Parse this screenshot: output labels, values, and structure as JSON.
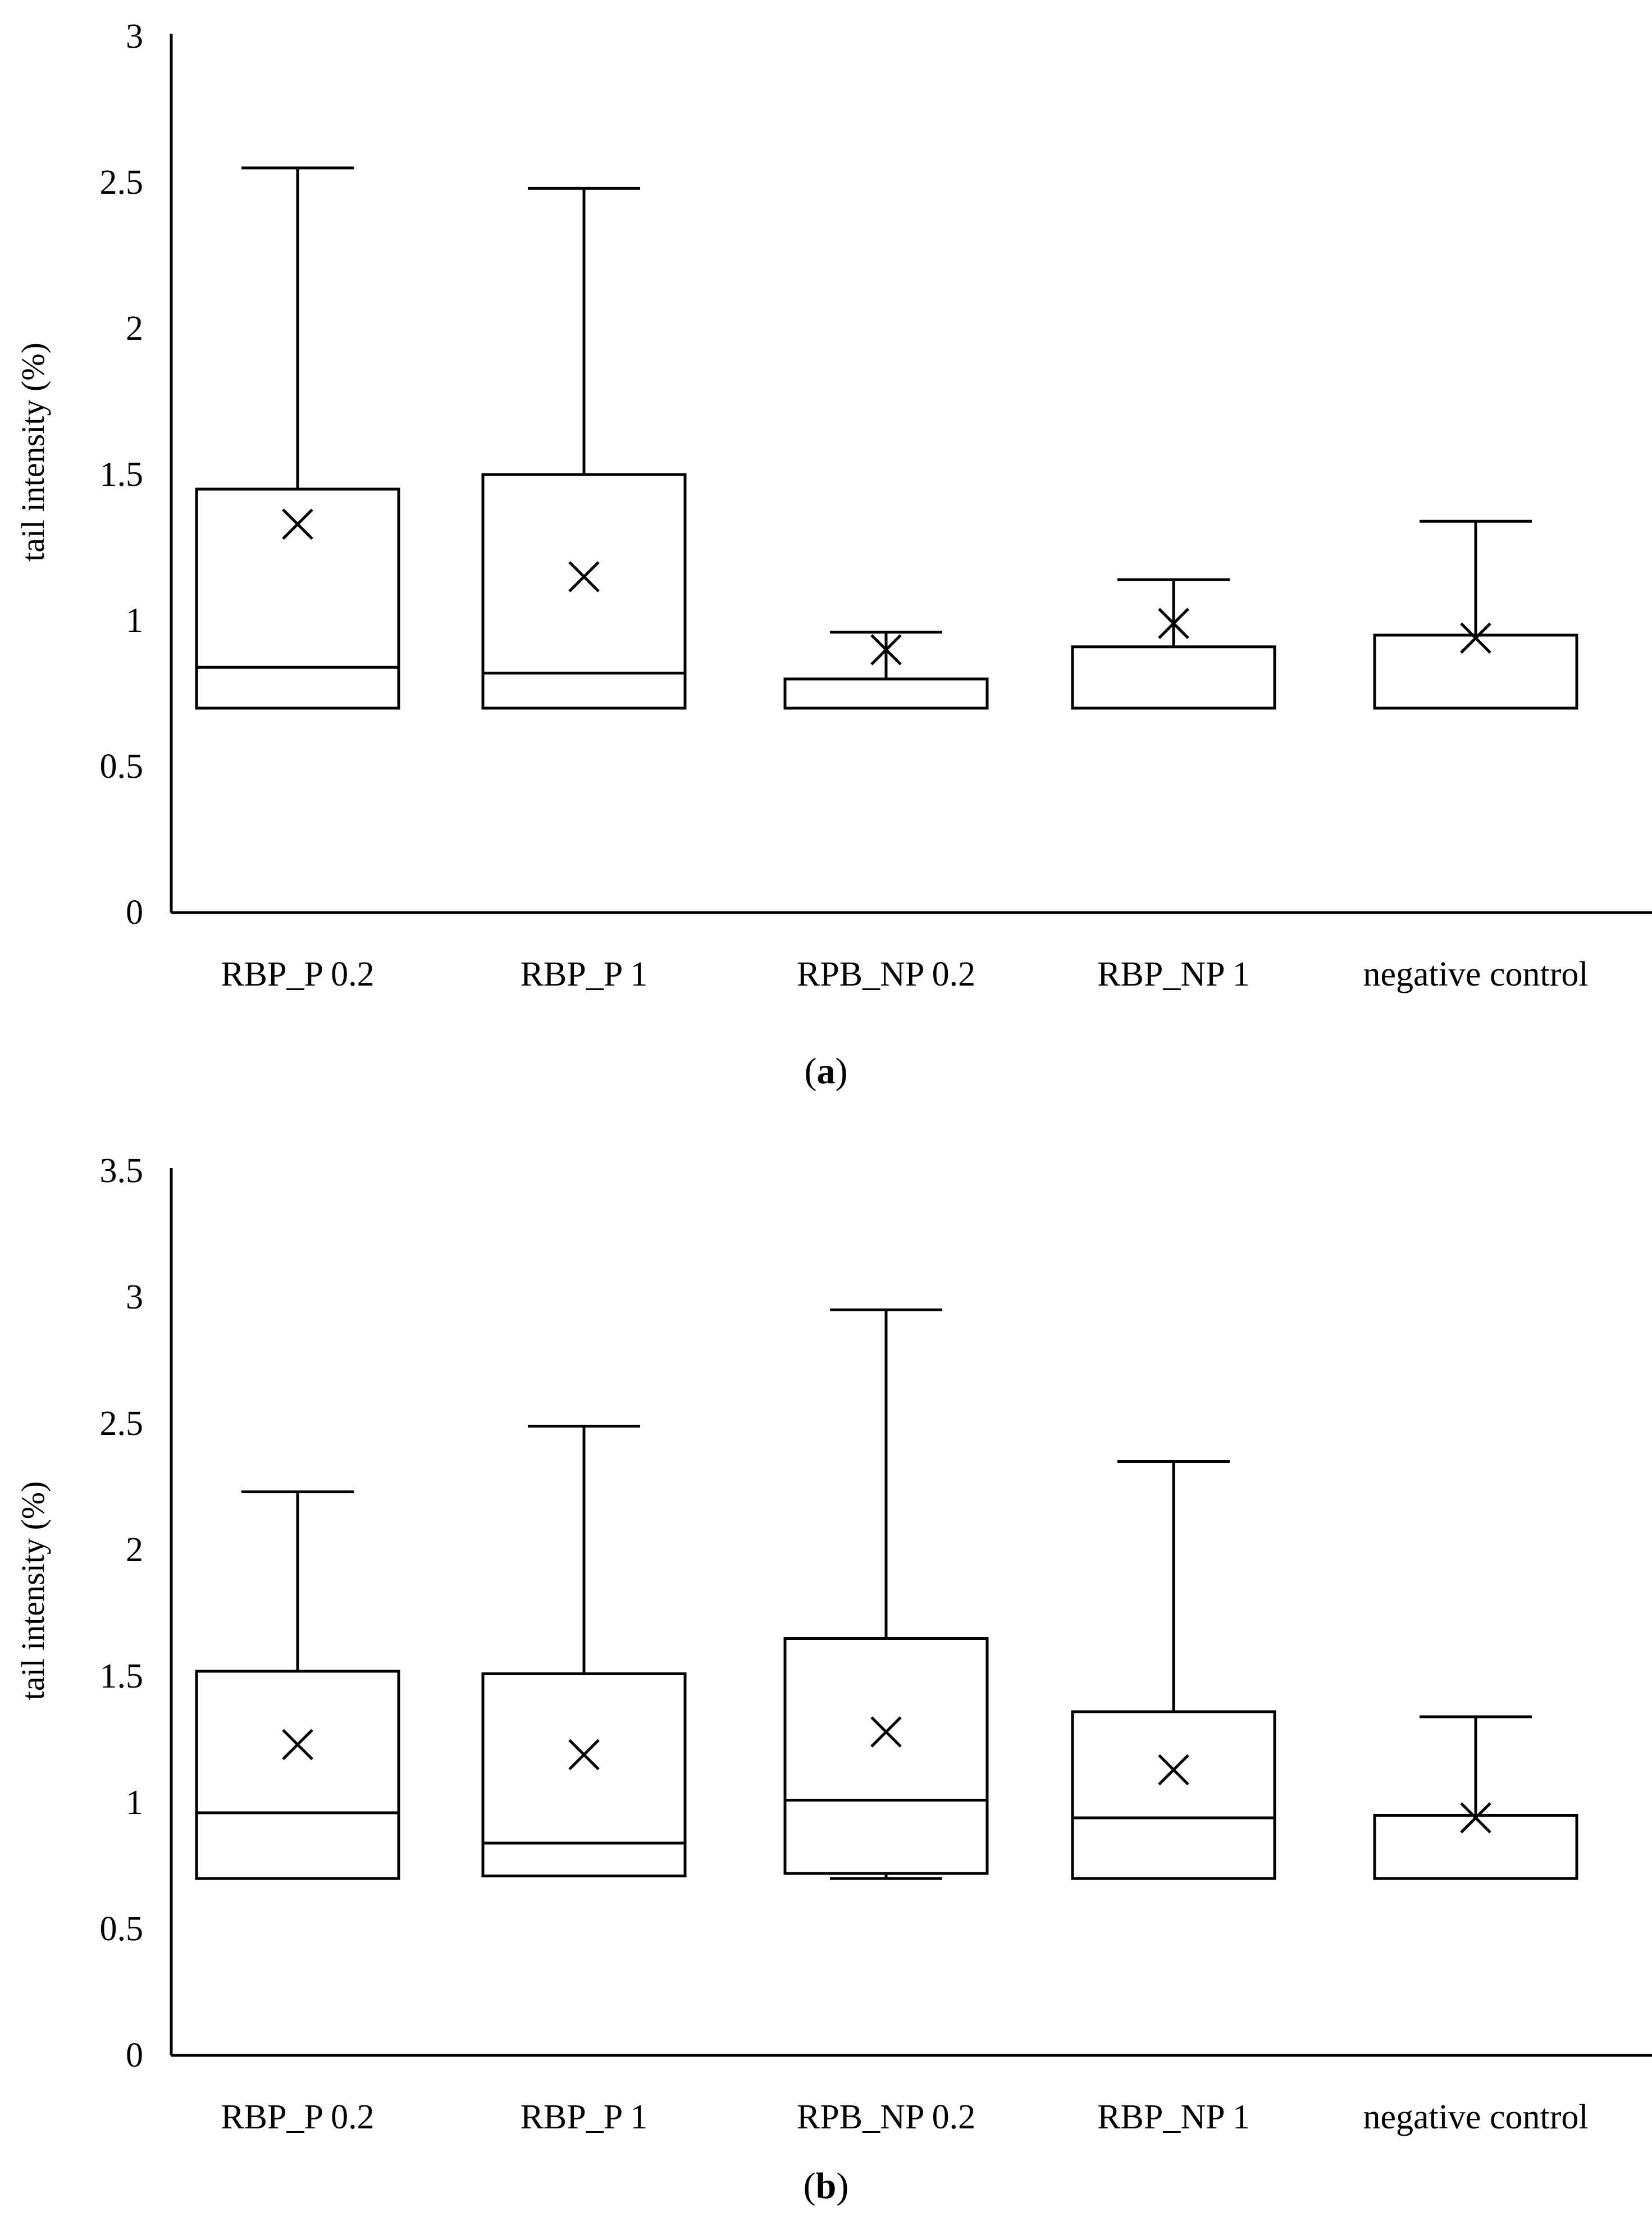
{
  "chart_data": [
    {
      "type": "box",
      "panel": "a",
      "ylabel": "tail intensity (%)",
      "xlabel": "",
      "ylim": [
        0,
        3
      ],
      "yticks": [
        "0",
        "0.5",
        "1",
        "1.5",
        "2",
        "2.5",
        "3"
      ],
      "categories": [
        "RBP_P 0.2",
        "RBP_P 1",
        "RPB_NP 0.2",
        "RBP_NP 1",
        "negative control"
      ],
      "boxes": [
        {
          "min": 0.7,
          "q1": 0.7,
          "median": 0.84,
          "q3": 1.45,
          "max": 2.55,
          "mean": 1.33
        },
        {
          "min": 0.7,
          "q1": 0.7,
          "median": 0.82,
          "q3": 1.5,
          "max": 2.48,
          "mean": 1.15
        },
        {
          "min": 0.7,
          "q1": 0.7,
          "median": 0.7,
          "q3": 0.8,
          "max": 0.96,
          "mean": 0.9
        },
        {
          "min": 0.7,
          "q1": 0.7,
          "median": 0.7,
          "q3": 0.91,
          "max": 1.14,
          "mean": 0.99
        },
        {
          "min": 0.7,
          "q1": 0.7,
          "median": 0.7,
          "q3": 0.95,
          "max": 1.34,
          "mean": 0.94
        }
      ]
    },
    {
      "type": "box",
      "panel": "b",
      "ylabel": "tail intensity (%)",
      "xlabel": "",
      "ylim": [
        0,
        3.5
      ],
      "yticks": [
        "0",
        "0.5",
        "1",
        "1.5",
        "2",
        "2.5",
        "3",
        "3.5"
      ],
      "categories": [
        "RBP_P 0.2",
        "RBP_P 1",
        "RPB_NP 0.2",
        "RBP_NP 1",
        "negative control"
      ],
      "boxes": [
        {
          "min": 0.7,
          "q1": 0.7,
          "median": 0.96,
          "q3": 1.52,
          "max": 2.23,
          "mean": 1.23
        },
        {
          "min": 0.71,
          "q1": 0.71,
          "median": 0.84,
          "q3": 1.51,
          "max": 2.49,
          "mean": 1.19
        },
        {
          "min": 0.7,
          "q1": 0.72,
          "median": 1.01,
          "q3": 1.65,
          "max": 2.95,
          "mean": 1.28
        },
        {
          "min": 0.7,
          "q1": 0.7,
          "median": 0.94,
          "q3": 1.36,
          "max": 2.35,
          "mean": 1.13
        },
        {
          "min": 0.7,
          "q1": 0.7,
          "median": 0.7,
          "q3": 0.95,
          "max": 1.34,
          "mean": 0.94
        }
      ]
    }
  ],
  "captions": {
    "a": {
      "open": "(",
      "letter": "a",
      "close": ")"
    },
    "b": {
      "open": "(",
      "letter": "b",
      "close": ")"
    }
  }
}
